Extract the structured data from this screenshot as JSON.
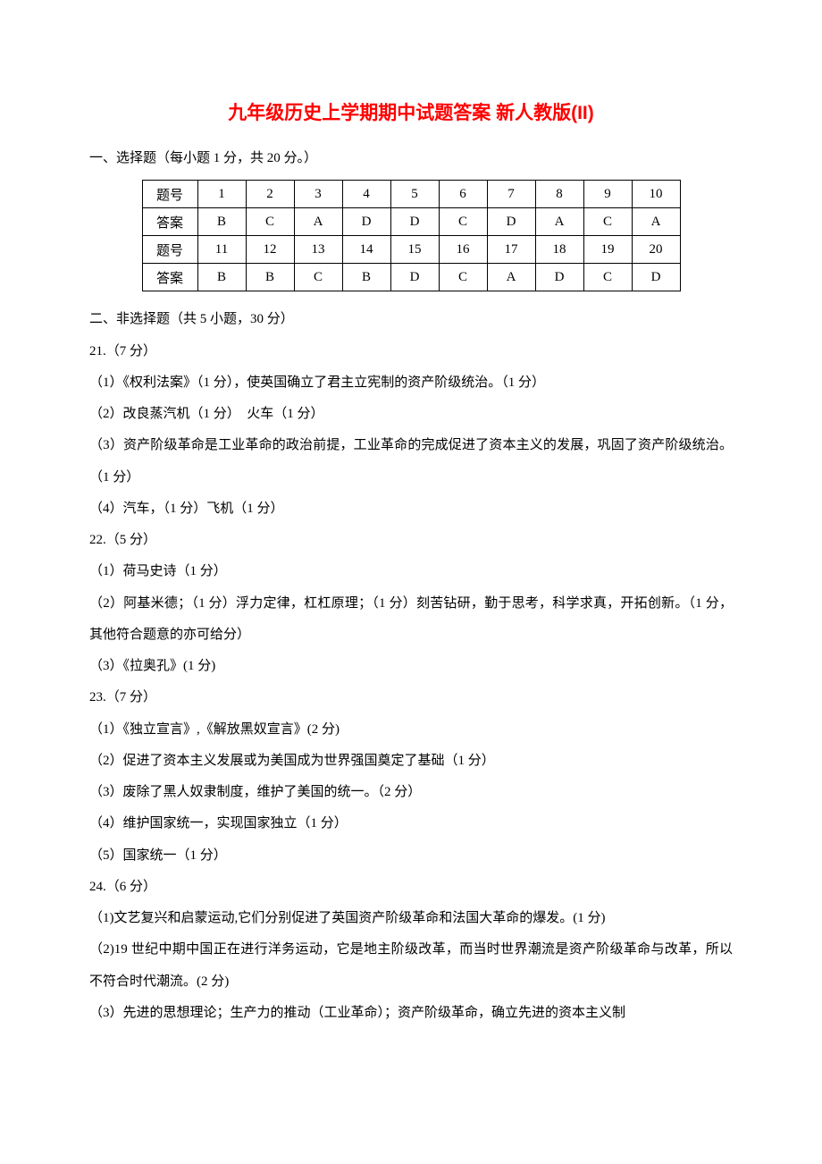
{
  "title_color": "#ff0000",
  "title": "九年级历史上学期期中试题答案 新人教版(II)",
  "section1_heading": "一、选择题（每小题 1 分，共 20 分。）",
  "table": {
    "row_label": "题号",
    "ans_label": "答案",
    "block1": {
      "nums": [
        "1",
        "2",
        "3",
        "4",
        "5",
        "6",
        "7",
        "8",
        "9",
        "10"
      ],
      "ans": [
        "B",
        "C",
        "A",
        "D",
        "D",
        "C",
        "D",
        "A",
        "C",
        "A"
      ]
    },
    "block2": {
      "nums": [
        "11",
        "12",
        "13",
        "14",
        "15",
        "16",
        "17",
        "18",
        "19",
        "20"
      ],
      "ans": [
        "B",
        "B",
        "C",
        "B",
        "D",
        "C",
        "A",
        "D",
        "C",
        "D"
      ]
    }
  },
  "section2_heading": "二、非选择题（共 5 小题，30 分）",
  "q21": {
    "head": "21.（7 分）",
    "p1": "（1）《权利法案》（1 分），使英国确立了君主立宪制的资产阶级统治。（1 分）",
    "p2": "（2）改良蒸汽机（1 分）　火车（1 分）",
    "p3": "（3）资产阶级革命是工业革命的政治前提，工业革命的完成促进了资本主义的发展，巩固了资产阶级统治。（1 分）",
    "p4": "（4）汽车，（1 分）飞机（1 分）"
  },
  "q22": {
    "head": "22.（5 分）",
    "p1": "（1）荷马史诗（1 分）",
    "p2": "（2）阿基米德；（1 分）浮力定律，杠杠原理；（1 分）刻苦钻研，勤于思考，科学求真，开拓创新。（1 分，其他符合题意的亦可给分）",
    "p3": "（3）《拉奥孔》(1 分)"
  },
  "q23": {
    "head": "23.（7 分）",
    "p1": "（1）《独立宣言》,《解放黑奴宣言》(2 分)",
    "p2": "（2）促进了资本主义发展或为美国成为世界强国奠定了基础（1 分）",
    "p3": "（3）废除了黑人奴隶制度，维护了美国的统一。（2 分）",
    "p4": "（4）维护国家统一，实现国家独立（1 分）",
    "p5": "（5）国家统一（1 分）"
  },
  "q24": {
    "head": "24.（6 分）",
    "p1": "（1)文艺复兴和启蒙运动,它们分别促进了英国资产阶级革命和法国大革命的爆发。(1 分)",
    "p2": "（2)19 世纪中期中国正在进行洋务运动，它是地主阶级改革，而当时世界潮流是资产阶级革命与改革，所以不符合时代潮流。(2 分)",
    "p3": "（3）先进的思想理论；生产力的推动（工业革命）；资产阶级革命，确立先进的资本主义制"
  }
}
